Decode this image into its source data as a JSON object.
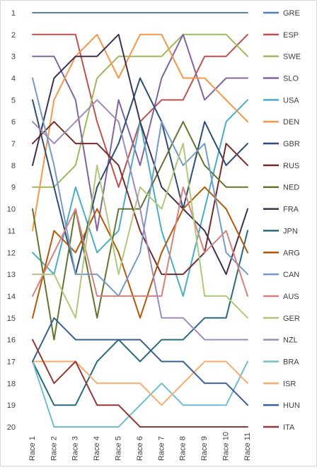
{
  "chart_data": {
    "type": "line",
    "title": "",
    "xlabel": "",
    "ylabel": "",
    "categories": [
      "Race 1",
      "Race 2",
      "Race 3",
      "Race 4",
      "Race 5",
      "Race 6",
      "Race 7",
      "Race 8",
      "Race 9",
      "Race 10",
      "Race 11"
    ],
    "y_ticks": [
      "1",
      "2",
      "3",
      "4",
      "5",
      "6",
      "7",
      "8",
      "9",
      "10",
      "11",
      "12",
      "13",
      "14",
      "15",
      "16",
      "17",
      "18",
      "19",
      "20"
    ],
    "ylim": [
      1,
      20
    ],
    "y_inverted": true,
    "grid": false,
    "legend_position": "right",
    "series": [
      {
        "name": "GRE",
        "color": "#4F81BD",
        "values": [
          1,
          1,
          1,
          1,
          1,
          1,
          1,
          1,
          1,
          1,
          1
        ]
      },
      {
        "name": "ESP",
        "color": "#C0504D",
        "values": [
          2,
          2,
          2,
          6,
          9,
          6,
          5,
          5,
          3,
          3,
          2
        ]
      },
      {
        "name": "SWE",
        "color": "#9BBB59",
        "values": [
          9,
          9,
          8,
          4,
          3,
          3,
          3,
          2,
          2,
          2,
          3
        ]
      },
      {
        "name": "SLO",
        "color": "#8064A2",
        "values": [
          3,
          3,
          5,
          11,
          5,
          8,
          4,
          2,
          5,
          4,
          4
        ]
      },
      {
        "name": "USA",
        "color": "#4BACC6",
        "values": [
          12,
          13,
          9,
          12,
          11,
          6,
          11,
          14,
          10,
          6,
          5
        ]
      },
      {
        "name": "DEN",
        "color": "#F79646",
        "values": [
          11,
          5,
          3,
          2,
          4,
          2,
          2,
          4,
          4,
          5,
          6
        ]
      },
      {
        "name": "GBR",
        "color": "#2C4D75",
        "values": [
          5,
          9,
          13,
          9,
          7,
          4,
          6,
          10,
          6,
          8,
          7
        ]
      },
      {
        "name": "RUS",
        "color": "#772C2A",
        "values": [
          7,
          6,
          7,
          7,
          8,
          11,
          13,
          13,
          12,
          7,
          8
        ]
      },
      {
        "name": "NED",
        "color": "#5F7530",
        "values": [
          10,
          16,
          10,
          15,
          10,
          10,
          8,
          6,
          8,
          9,
          9
        ]
      },
      {
        "name": "FRA",
        "color": "#403152",
        "values": [
          8,
          4,
          3,
          3,
          2,
          6,
          9,
          10,
          11,
          13,
          10
        ]
      },
      {
        "name": "JPN",
        "color": "#276A7C",
        "values": [
          17,
          19,
          19,
          17,
          16,
          17,
          16,
          16,
          15,
          15,
          11
        ]
      },
      {
        "name": "ARG",
        "color": "#B65708",
        "values": [
          15,
          11,
          12,
          10,
          12,
          15,
          12,
          10,
          9,
          10,
          12
        ]
      },
      {
        "name": "CAN",
        "color": "#729ACA",
        "values": [
          4,
          8,
          13,
          13,
          14,
          12,
          6,
          8,
          7,
          12,
          13
        ]
      },
      {
        "name": "AUS",
        "color": "#D7807E",
        "values": [
          14,
          12,
          10,
          14,
          14,
          14,
          14,
          9,
          12,
          11,
          14
        ]
      },
      {
        "name": "GER",
        "color": "#AFC97A",
        "values": [
          13,
          13,
          15,
          8,
          13,
          9,
          10,
          7,
          14,
          14,
          15
        ]
      },
      {
        "name": "NZL",
        "color": "#9F8AB9",
        "values": [
          6,
          7,
          6,
          5,
          6,
          10,
          15,
          15,
          16,
          16,
          16
        ]
      },
      {
        "name": "BRA",
        "color": "#6FBDD1",
        "values": [
          17,
          20,
          20,
          20,
          20,
          19,
          18,
          19,
          19,
          19,
          17
        ]
      },
      {
        "name": "ISR",
        "color": "#F9AB6B",
        "values": [
          17,
          17,
          17,
          18,
          18,
          18,
          19,
          18,
          17,
          17,
          18
        ]
      },
      {
        "name": "HUN",
        "color": "#3A5F92",
        "values": [
          17,
          15,
          16,
          16,
          16,
          16,
          17,
          17,
          18,
          18,
          19
        ]
      },
      {
        "name": "ITA",
        "color": "#953735",
        "values": [
          16,
          18,
          17,
          19,
          19,
          20,
          20,
          20,
          20,
          20,
          20
        ]
      }
    ]
  }
}
